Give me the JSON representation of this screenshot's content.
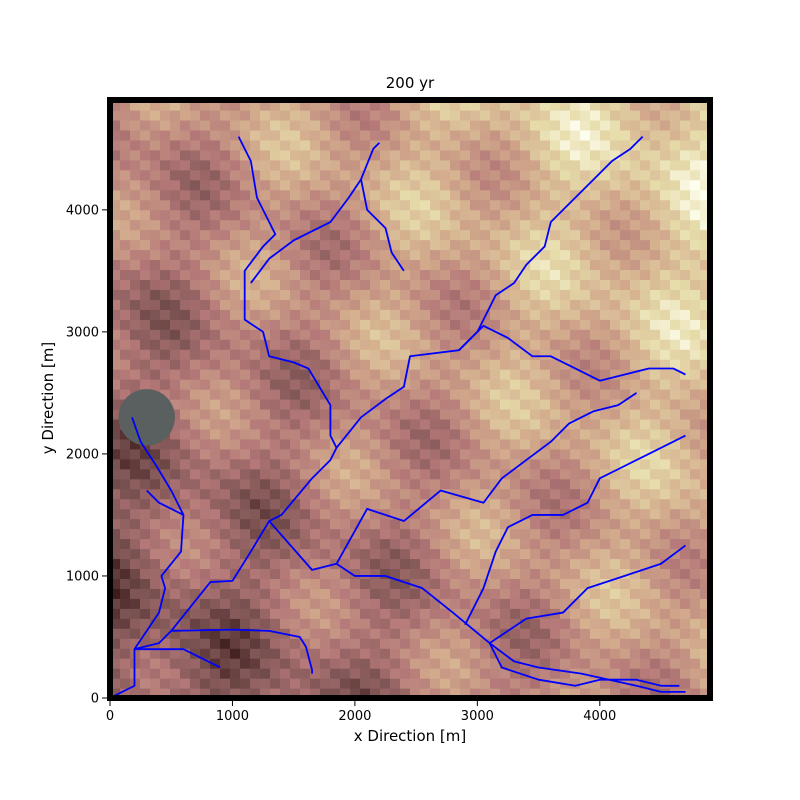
{
  "chart_data": {
    "type": "heatmap",
    "title": "200 yr",
    "xlabel": "x Direction [m]",
    "ylabel": "y Direction [m]",
    "xlim": [
      0,
      4900
    ],
    "ylim": [
      0,
      4900
    ],
    "xticks": [
      0,
      1000,
      2000,
      3000,
      4000
    ],
    "yticks": [
      0,
      1000,
      2000,
      3000,
      4000
    ],
    "grid": false,
    "colormap": "pink",
    "river_color": "#0000ff",
    "frame_color": "#000000",
    "lake": {
      "center": [
        300,
        2300
      ],
      "radius": 230,
      "color": "#5a5f5f"
    },
    "streams": [
      [
        [
          0,
          0
        ],
        [
          200,
          100
        ],
        [
          200,
          400
        ],
        [
          400,
          450
        ],
        [
          500,
          550
        ],
        [
          1000,
          560
        ],
        [
          1300,
          550
        ],
        [
          1550,
          500
        ],
        [
          1600,
          420
        ],
        [
          1650,
          230
        ],
        [
          1650,
          200
        ]
      ],
      [
        [
          200,
          400
        ],
        [
          400,
          700
        ],
        [
          450,
          900
        ],
        [
          420,
          1000
        ],
        [
          580,
          1200
        ],
        [
          600,
          1500
        ],
        [
          500,
          1700
        ],
        [
          380,
          1900
        ],
        [
          250,
          2100
        ],
        [
          180,
          2300
        ]
      ],
      [
        [
          200,
          400
        ],
        [
          600,
          400
        ],
        [
          900,
          250
        ]
      ],
      [
        [
          500,
          550
        ],
        [
          700,
          800
        ],
        [
          820,
          950
        ],
        [
          1000,
          960
        ],
        [
          1150,
          1200
        ],
        [
          1300,
          1450
        ],
        [
          1400,
          1500
        ],
        [
          1650,
          1800
        ],
        [
          1800,
          1950
        ],
        [
          1850,
          2050
        ],
        [
          1800,
          2150
        ],
        [
          1800,
          2400
        ],
        [
          1620,
          2700
        ],
        [
          1500,
          2750
        ],
        [
          1300,
          2800
        ],
        [
          1250,
          3000
        ],
        [
          1100,
          3100
        ],
        [
          1100,
          3500
        ],
        [
          1250,
          3700
        ],
        [
          1350,
          3800
        ],
        [
          1200,
          4100
        ],
        [
          1150,
          4400
        ],
        [
          1050,
          4600
        ]
      ],
      [
        [
          1300,
          1450
        ],
        [
          1650,
          1050
        ],
        [
          1850,
          1100
        ],
        [
          2100,
          1550
        ],
        [
          2400,
          1450
        ],
        [
          2700,
          1700
        ],
        [
          3050,
          1600
        ],
        [
          3200,
          1800
        ],
        [
          3600,
          2100
        ],
        [
          3750,
          2250
        ],
        [
          3950,
          2350
        ],
        [
          4150,
          2400
        ],
        [
          4300,
          2500
        ]
      ],
      [
        [
          1850,
          2050
        ],
        [
          2050,
          2300
        ],
        [
          2250,
          2450
        ],
        [
          2400,
          2550
        ],
        [
          2450,
          2800
        ],
        [
          2850,
          2850
        ],
        [
          3000,
          3000
        ],
        [
          3150,
          3300
        ],
        [
          3300,
          3400
        ],
        [
          3400,
          3550
        ],
        [
          3550,
          3700
        ],
        [
          3600,
          3900
        ],
        [
          3800,
          4100
        ],
        [
          3950,
          4250
        ],
        [
          4100,
          4400
        ],
        [
          4250,
          4500
        ],
        [
          4350,
          4600
        ]
      ],
      [
        [
          1850,
          1100
        ],
        [
          2000,
          1000
        ],
        [
          2250,
          1000
        ],
        [
          2550,
          900
        ],
        [
          2800,
          700
        ],
        [
          3100,
          450
        ],
        [
          3300,
          300
        ],
        [
          3500,
          250
        ],
        [
          3850,
          200
        ],
        [
          4300,
          100
        ],
        [
          4500,
          50
        ],
        [
          4700,
          50
        ]
      ],
      [
        [
          3100,
          450
        ],
        [
          3400,
          650
        ],
        [
          3700,
          700
        ],
        [
          3900,
          900
        ],
        [
          4200,
          1000
        ],
        [
          4500,
          1100
        ],
        [
          4700,
          1250
        ]
      ],
      [
        [
          2900,
          600
        ],
        [
          3050,
          900
        ],
        [
          3150,
          1200
        ],
        [
          3250,
          1400
        ],
        [
          3450,
          1500
        ],
        [
          3700,
          1500
        ],
        [
          3900,
          1600
        ],
        [
          4000,
          1800
        ],
        [
          4200,
          1900
        ],
        [
          4400,
          2000
        ],
        [
          4600,
          2100
        ],
        [
          4700,
          2150
        ]
      ],
      [
        [
          2200,
          4550
        ],
        [
          2150,
          4500
        ],
        [
          2050,
          4250
        ],
        [
          1950,
          4100
        ],
        [
          1800,
          3900
        ],
        [
          1500,
          3750
        ],
        [
          1300,
          3600
        ],
        [
          1150,
          3400
        ]
      ],
      [
        [
          2050,
          4250
        ],
        [
          2100,
          4000
        ],
        [
          2250,
          3850
        ],
        [
          2300,
          3650
        ],
        [
          2400,
          3500
        ]
      ],
      [
        [
          2850,
          2850
        ],
        [
          3050,
          3050
        ],
        [
          3250,
          2950
        ],
        [
          3450,
          2800
        ],
        [
          3600,
          2800
        ],
        [
          3800,
          2700
        ],
        [
          4000,
          2600
        ],
        [
          4200,
          2650
        ],
        [
          4400,
          2700
        ],
        [
          4600,
          2700
        ],
        [
          4700,
          2650
        ]
      ],
      [
        [
          3100,
          450
        ],
        [
          3200,
          250
        ],
        [
          3500,
          150
        ],
        [
          3800,
          100
        ],
        [
          4000,
          150
        ],
        [
          4300,
          150
        ],
        [
          4500,
          100
        ],
        [
          4650,
          100
        ]
      ],
      [
        [
          600,
          1500
        ],
        [
          400,
          1600
        ],
        [
          300,
          1700
        ]
      ]
    ],
    "elevation_field": "procedural ridge-valley surface (low at left/bottom, high at right/top)"
  }
}
